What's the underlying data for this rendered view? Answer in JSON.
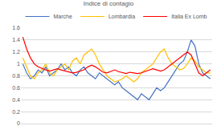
{
  "chart_data": {
    "type": "line",
    "title": "Indice di contagio",
    "categories": [
      null,
      null,
      null,
      null,
      null,
      null,
      null,
      null,
      null,
      null,
      null,
      null,
      null,
      null,
      null,
      null,
      null,
      null,
      null,
      null,
      null,
      null,
      null,
      null,
      null,
      null,
      null,
      null,
      null,
      null,
      null,
      null,
      null,
      null,
      null,
      null,
      null,
      null,
      null,
      null,
      null,
      null,
      null,
      null,
      null,
      null,
      null,
      null,
      null,
      null
    ],
    "series": [
      {
        "name": "Marche",
        "color": "#4472c4",
        "values": [
          1.0,
          0.85,
          0.75,
          0.8,
          0.9,
          0.85,
          0.95,
          0.8,
          0.85,
          0.9,
          1.0,
          0.9,
          0.95,
          0.85,
          0.8,
          0.9,
          0.95,
          0.85,
          0.8,
          0.75,
          0.85,
          0.8,
          0.75,
          0.7,
          0.65,
          0.7,
          0.6,
          0.55,
          0.5,
          0.45,
          0.4,
          0.5,
          0.45,
          0.4,
          0.5,
          0.6,
          0.55,
          0.6,
          0.7,
          0.8,
          0.9,
          1.0,
          1.05,
          1.2,
          1.4,
          1.3,
          1.0,
          0.85,
          0.8,
          0.75
        ]
      },
      {
        "name": "Lombardia",
        "color": "#ffc000",
        "values": [
          1.1,
          0.95,
          0.8,
          0.75,
          0.85,
          0.9,
          1.0,
          0.85,
          0.8,
          0.9,
          0.95,
          1.0,
          0.9,
          1.05,
          1.1,
          1.0,
          1.15,
          1.2,
          1.25,
          1.15,
          1.0,
          0.9,
          0.8,
          0.75,
          0.7,
          0.72,
          0.75,
          0.8,
          0.75,
          0.7,
          0.75,
          0.85,
          0.9,
          0.95,
          1.0,
          1.1,
          1.2,
          1.25,
          1.1,
          1.0,
          0.95,
          0.9,
          0.92,
          1.0,
          1.1,
          1.05,
          0.95,
          0.9,
          0.85,
          0.85
        ]
      },
      {
        "name": "Italia Ex Lomb",
        "color": "#ff0000",
        "values": [
          1.45,
          1.25,
          1.1,
          1.0,
          0.95,
          0.92,
          0.9,
          0.88,
          0.9,
          0.92,
          0.9,
          0.88,
          0.87,
          0.85,
          0.86,
          0.88,
          0.9,
          0.95,
          0.98,
          0.95,
          0.9,
          0.86,
          0.85,
          0.88,
          0.9,
          0.87,
          0.85,
          0.84,
          0.86,
          0.85,
          0.84,
          0.85,
          0.87,
          0.9,
          0.92,
          0.9,
          0.88,
          0.9,
          0.95,
          1.0,
          1.05,
          1.1,
          1.15,
          1.2,
          1.15,
          1.0,
          0.85,
          0.8,
          0.85,
          0.9
        ]
      }
    ],
    "ylim": [
      0,
      1.6
    ],
    "yticks": [
      0,
      0.2,
      0.4,
      0.6,
      0.8,
      1,
      1.2,
      1.4,
      1.6
    ],
    "grid": true,
    "legend": "top",
    "tick_labels": "y"
  }
}
